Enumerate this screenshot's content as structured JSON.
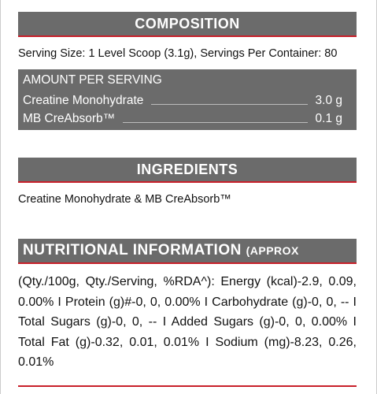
{
  "composition": {
    "title": "COMPOSITION",
    "serving_info": "Serving Size: 1 Level Scoop (3.1g), Servings Per Container: 80",
    "table": {
      "header": "AMOUNT PER SERVING",
      "rows": [
        [
          "Creatine Monohydrate",
          "3.0 g"
        ],
        [
          "MB CreAbsorb™",
          "0.1 g"
        ]
      ]
    }
  },
  "ingredients": {
    "title": "INGREDIENTS",
    "text": "Creatine Monohydrate & MB CreAbsorb™"
  },
  "nutrition": {
    "title": "NUTRITIONAL INFORMATION",
    "subtitle": "(APPROX VALUES):",
    "text": "(Qty./100g, Qty./Serving, %RDA^): Energy (kcal)-2.9, 0.09, 0.00% I Protein (g)#-0, 0, 0.00% I Carbohydrate (g)-0, 0, -- I Total Sugars (g)-0, 0, -- I Added Sugars (g)-0, 0, 0.00% I Total Fat (g)-0.32, 0.01, 0.01% I Sodium (mg)-8.23, 0.26, 0.01%"
  }
}
